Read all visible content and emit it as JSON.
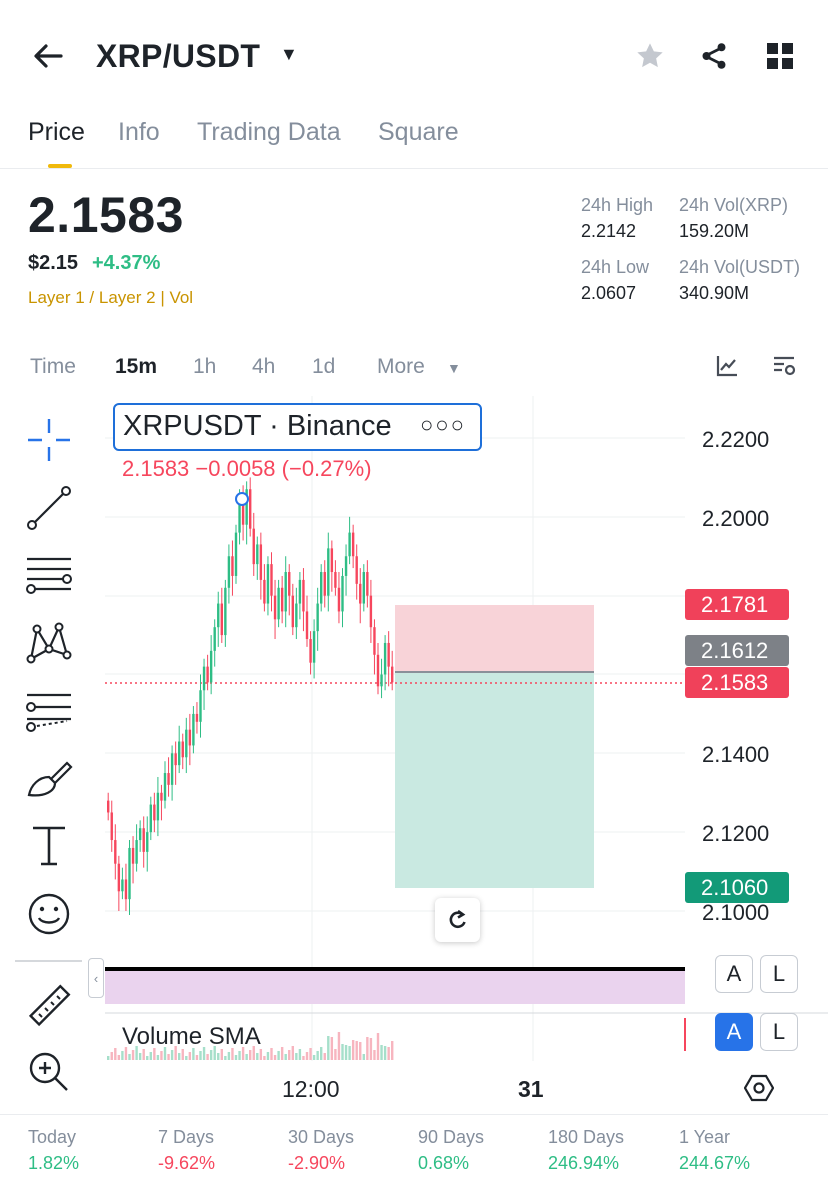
{
  "header": {
    "pair": "XRP/USDT",
    "back_icon": "arrow-left-icon",
    "favorite_icon": "star-icon",
    "share_icon": "share-icon",
    "menu_icon": "grid-icon"
  },
  "tabs": [
    {
      "label": "Price",
      "active": true
    },
    {
      "label": "Info"
    },
    {
      "label": "Trading Data"
    },
    {
      "label": "Square"
    }
  ],
  "price": {
    "last": "2.1583",
    "usd": "$2.15",
    "change_pct": "+4.37%",
    "tags": [
      "Layer 1 / Layer 2",
      "Vol"
    ]
  },
  "stats": {
    "high_label": "24h High",
    "high_value": "2.2142",
    "low_label": "24h Low",
    "low_value": "2.0607",
    "vol_base_label": "24h Vol(XRP)",
    "vol_base_value": "159.20M",
    "vol_quote_label": "24h Vol(USDT)",
    "vol_quote_value": "340.90M"
  },
  "intervals": [
    {
      "label": "Time"
    },
    {
      "label": "15m",
      "active": true
    },
    {
      "label": "1h"
    },
    {
      "label": "4h"
    },
    {
      "label": "1d"
    },
    {
      "label": "More"
    }
  ],
  "chart": {
    "legend_title": "XRPUSDT · Binance",
    "ohlc": "2.1583  −0.0058 (−0.27%)",
    "y_ticks": [
      "2.2200",
      "2.2000",
      "2.1400",
      "2.1200",
      "2.1000"
    ],
    "price_tags": {
      "stop_loss": "2.1781",
      "entry": "2.1612",
      "current": "2.1583",
      "take_profit": "2.1060"
    },
    "volume_label": "Volume SMA",
    "x_ticks": [
      "12:00",
      "31"
    ],
    "buttons": {
      "a": "A",
      "l": "L"
    },
    "colors": {
      "up": "#2ebd85",
      "down": "#f6465d",
      "accent": "#f0b90b",
      "loss_zone": "#f8d3d8",
      "profit_zone": "#c9e9e1"
    }
  },
  "chart_data": {
    "type": "candlestick",
    "symbol": "XRPUSDT",
    "interval": "15m",
    "ylim": [
      2.095,
      2.225
    ],
    "y_ticks": [
      2.22,
      2.2,
      2.14,
      2.12,
      2.1
    ],
    "x_ticks": [
      "12:00",
      "31"
    ],
    "last_price": 2.1583,
    "position": {
      "entry": 2.1612,
      "stop": 2.1781,
      "target": 2.106
    },
    "candles_close": [
      2.125,
      2.118,
      2.112,
      2.105,
      2.108,
      2.103,
      2.116,
      2.112,
      2.118,
      2.121,
      2.115,
      2.12,
      2.127,
      2.123,
      2.13,
      2.128,
      2.135,
      2.132,
      2.14,
      2.137,
      2.143,
      2.139,
      2.146,
      2.142,
      2.15,
      2.148,
      2.156,
      2.162,
      2.158,
      2.166,
      2.172,
      2.178,
      2.17,
      2.182,
      2.19,
      2.185,
      2.196,
      2.204,
      2.198,
      2.207,
      2.197,
      2.188,
      2.193,
      2.184,
      2.178,
      2.188,
      2.18,
      2.174,
      2.182,
      2.176,
      2.186,
      2.18,
      2.172,
      2.178,
      2.184,
      2.176,
      2.169,
      2.163,
      2.171,
      2.178,
      2.186,
      2.18,
      2.192,
      2.186,
      2.182,
      2.176,
      2.185,
      2.19,
      2.196,
      2.19,
      2.183,
      2.178,
      2.186,
      2.18,
      2.172,
      2.165,
      2.157,
      2.16,
      2.168,
      2.162,
      2.158
    ]
  },
  "performance": [
    {
      "label": "Today",
      "value": "1.82%",
      "dir": "up"
    },
    {
      "label": "7 Days",
      "value": "-9.62%",
      "dir": "down"
    },
    {
      "label": "30 Days",
      "value": "-2.90%",
      "dir": "down"
    },
    {
      "label": "90 Days",
      "value": "0.68%",
      "dir": "up"
    },
    {
      "label": "180 Days",
      "value": "246.94%",
      "dir": "up"
    },
    {
      "label": "1 Year",
      "value": "244.67%",
      "dir": "up"
    }
  ]
}
